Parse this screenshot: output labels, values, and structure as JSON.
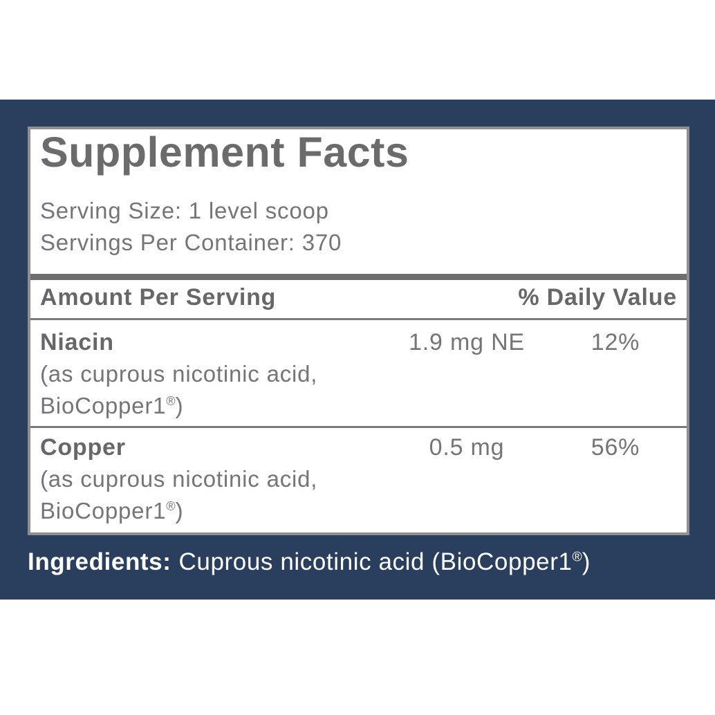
{
  "colors": {
    "background_band": "#2a3e5d",
    "panel_background": "#ffffff",
    "panel_border": "#8f8f8f",
    "divider_thick": "#6e6e6e",
    "divider_thin": "#7a7a7a",
    "title_text": "#6b6b6b",
    "bold_text": "#676767",
    "body_text": "#757575",
    "ingredients_text": "#ffffff"
  },
  "supplement_facts": {
    "title": "Supplement Facts",
    "serving_size": "Serving Size: 1 level scoop",
    "servings_per_container": "Servings Per Container: 370",
    "columns": {
      "amount_header": "Amount Per Serving",
      "daily_value_header": "% Daily Value"
    },
    "rows": [
      {
        "name": "Niacin",
        "amount": "1.9 mg NE",
        "daily_value": "12%",
        "source_line1": "(as cuprous nicotinic acid,",
        "source_line2": "BioCopper1",
        "source_reg_mark": "®",
        "source_line2_close": ")"
      },
      {
        "name": "Copper",
        "amount": "0.5 mg",
        "daily_value": "56%",
        "source_line1": "(as cuprous nicotinic acid,",
        "source_line2": "BioCopper1",
        "source_reg_mark": "®",
        "source_line2_close": ")"
      }
    ]
  },
  "ingredients": {
    "label": "Ingredients:",
    "text": "Cuprous nicotinic acid (BioCopper1",
    "reg_mark": "®",
    "text_close": ")"
  }
}
